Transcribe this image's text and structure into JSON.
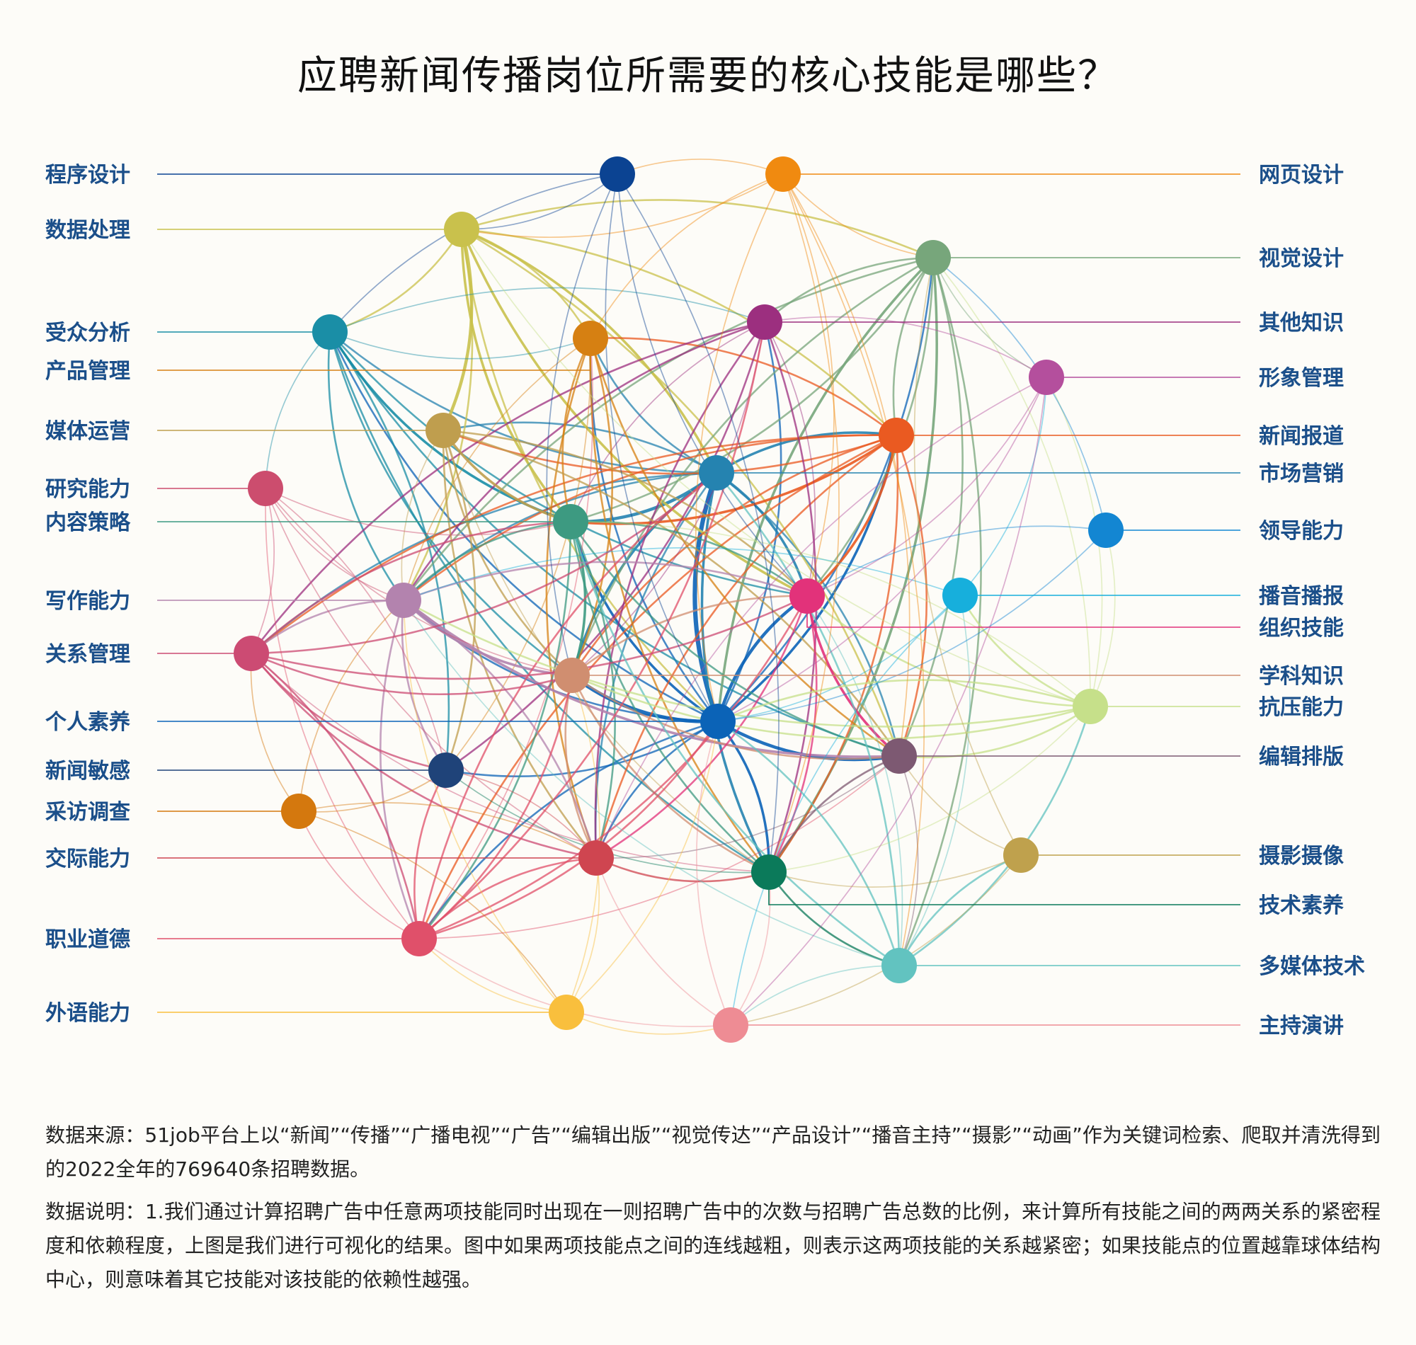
{
  "title": "应聘新闻传播岗位所需要的核心技能是哪些？",
  "nodes": [
    {
      "label": "程序设计",
      "color": "#0b4392"
    },
    {
      "label": "网页设计",
      "color": "#f08a10"
    },
    {
      "label": "数据处理",
      "color": "#c9c14c"
    },
    {
      "label": "视觉设计",
      "color": "#77a67b"
    },
    {
      "label": "受众分析",
      "color": "#1a8ea6"
    },
    {
      "label": "其他知识",
      "color": "#9c2f7f"
    },
    {
      "label": "产品管理",
      "color": "#d68012"
    },
    {
      "label": "形象管理",
      "color": "#b44f9d"
    },
    {
      "label": "媒体运营",
      "color": "#bf9e4e"
    },
    {
      "label": "新闻报道",
      "color": "#ea5a21"
    },
    {
      "label": "市场营销",
      "color": "#2583b0"
    },
    {
      "label": "研究能力",
      "color": "#cc4d6e"
    },
    {
      "label": "内容策略",
      "color": "#3d9a81"
    },
    {
      "label": "领导能力",
      "color": "#1386d2"
    },
    {
      "label": "写作能力",
      "color": "#b383ae"
    },
    {
      "label": "播音播报",
      "color": "#17afdc"
    },
    {
      "label": "组织技能",
      "color": "#e2327a"
    },
    {
      "label": "关系管理",
      "color": "#cc4b73"
    },
    {
      "label": "学科知识",
      "color": "#d08e70"
    },
    {
      "label": "抗压能力",
      "color": "#c6e08a"
    },
    {
      "label": "个人素养",
      "color": "#0b63b7"
    },
    {
      "label": "编辑排版",
      "color": "#7d5972"
    },
    {
      "label": "新闻敏感",
      "color": "#1f4379"
    },
    {
      "label": "采访调查",
      "color": "#d4780e"
    },
    {
      "label": "摄影摄像",
      "color": "#bfa14d"
    },
    {
      "label": "交际能力",
      "color": "#cf4550"
    },
    {
      "label": "技术素养",
      "color": "#0b7a5a"
    },
    {
      "label": "职业道德",
      "color": "#e0506a"
    },
    {
      "label": "多媒体技术",
      "color": "#62c3c0"
    },
    {
      "label": "外语能力",
      "color": "#f9bf3d"
    },
    {
      "label": "主持演讲",
      "color": "#ee8c94"
    }
  ],
  "edges": [
    [
      "个人素养",
      "市场营销",
      6
    ],
    [
      "个人素养",
      "编辑排版",
      4
    ],
    [
      "个人素养",
      "学科知识",
      5
    ],
    [
      "个人素养",
      "组织技能",
      4
    ],
    [
      "个人素养",
      "内容策略",
      3
    ],
    [
      "个人素养",
      "新闻报道",
      3
    ],
    [
      "个人素养",
      "技术素养",
      3
    ],
    [
      "个人素养",
      "写作能力",
      2
    ],
    [
      "个人素养",
      "产品管理",
      2
    ],
    [
      "个人素养",
      "交际能力",
      2
    ],
    [
      "个人素养",
      "其他知识",
      2
    ],
    [
      "个人素养",
      "视觉设计",
      2
    ],
    [
      "个人素养",
      "职业道德",
      2
    ],
    [
      "个人素养",
      "受众分析",
      2
    ],
    [
      "个人素养",
      "新闻敏感",
      2
    ],
    [
      "市场营销",
      "内容策略",
      4
    ],
    [
      "市场营销",
      "组织技能",
      3
    ],
    [
      "市场营销",
      "新闻报道",
      3
    ],
    [
      "市场营销",
      "技术素养",
      3
    ],
    [
      "市场营销",
      "学科知识",
      3
    ],
    [
      "市场营销",
      "编辑排版",
      2
    ],
    [
      "市场营销",
      "受众分析",
      2
    ],
    [
      "市场营销",
      "媒体运营",
      2
    ],
    [
      "市场营销",
      "写作能力",
      2
    ],
    [
      "市场营销",
      "产品管理",
      2
    ],
    [
      "市场营销",
      "交际能力",
      2
    ],
    [
      "市场营销",
      "关系管理",
      2
    ],
    [
      "数据处理",
      "媒体运营",
      4
    ],
    [
      "数据处理",
      "内容策略",
      3
    ],
    [
      "数据处理",
      "市场营销",
      3
    ],
    [
      "数据处理",
      "组织技能",
      3
    ],
    [
      "数据处理",
      "新闻报道",
      2
    ],
    [
      "数据处理",
      "产品管理",
      2
    ],
    [
      "数据处理",
      "受众分析",
      2
    ],
    [
      "数据处理",
      "视觉设计",
      2
    ],
    [
      "数据处理",
      "编辑排版",
      2
    ],
    [
      "数据处理",
      "写作能力",
      2
    ],
    [
      "数据处理",
      "个人素养",
      2
    ],
    [
      "受众分析",
      "内容策略",
      3
    ],
    [
      "受众分析",
      "组织技能",
      2
    ],
    [
      "受众分析",
      "编辑排版",
      2
    ],
    [
      "受众分析",
      "写作能力",
      2
    ],
    [
      "受众分析",
      "新闻敏感",
      2
    ],
    [
      "受众分析",
      "研究能力",
      1
    ],
    [
      "受众分析",
      "技术素养",
      2
    ],
    [
      "受众分析",
      "产品管理",
      1
    ],
    [
      "受众分析",
      "其他知识",
      1
    ],
    [
      "受众分析",
      "学科知识",
      2
    ],
    [
      "视觉设计",
      "个人素养",
      3
    ],
    [
      "视觉设计",
      "技术素养",
      3
    ],
    [
      "视觉设计",
      "其他知识",
      2
    ],
    [
      "视觉设计",
      "新闻报道",
      2
    ],
    [
      "视觉设计",
      "写作能力",
      2
    ],
    [
      "视觉设计",
      "编辑排版",
      2
    ],
    [
      "视觉设计",
      "内容策略",
      2
    ],
    [
      "视觉设计",
      "多媒体技术",
      2
    ],
    [
      "视觉设计",
      "学科知识",
      2
    ],
    [
      "视觉设计",
      "形象管理",
      1
    ],
    [
      "视觉设计",
      "组织技能",
      2
    ],
    [
      "新闻报道",
      "组织技能",
      3
    ],
    [
      "新闻报道",
      "内容策略",
      3
    ],
    [
      "新闻报道",
      "学科知识",
      2
    ],
    [
      "新闻报道",
      "技术素养",
      2
    ],
    [
      "新闻报道",
      "交际能力",
      2
    ],
    [
      "新闻报道",
      "写作能力",
      2
    ],
    [
      "新闻报道",
      "产品管理",
      2
    ],
    [
      "新闻报道",
      "媒体运营",
      2
    ],
    [
      "新闻报道",
      "编辑排版",
      2
    ],
    [
      "新闻报道",
      "关系管理",
      2
    ],
    [
      "新闻报道",
      "职业道德",
      2
    ],
    [
      "其他知识",
      "交际能力",
      2
    ],
    [
      "其他知识",
      "技术素养",
      2
    ],
    [
      "其他知识",
      "新闻敏感",
      2
    ],
    [
      "其他知识",
      "写作能力",
      2
    ],
    [
      "其他知识",
      "关系管理",
      2
    ],
    [
      "其他知识",
      "学科知识",
      1
    ],
    [
      "其他知识",
      "内容策略",
      1
    ],
    [
      "其他知识",
      "组织技能",
      1
    ],
    [
      "产品管理",
      "编辑排版",
      2
    ],
    [
      "产品管理",
      "内容策略",
      2
    ],
    [
      "产品管理",
      "交际能力",
      2
    ],
    [
      "产品管理",
      "学科知识",
      2
    ],
    [
      "产品管理",
      "技术素养",
      2
    ],
    [
      "产品管理",
      "写作能力",
      1
    ],
    [
      "产品管理",
      "新闻敏感",
      1
    ],
    [
      "媒体运营",
      "内容策略",
      3
    ],
    [
      "媒体运营",
      "学科知识",
      2
    ],
    [
      "媒体运营",
      "编辑排版",
      2
    ],
    [
      "媒体运营",
      "组织技能",
      2
    ],
    [
      "媒体运营",
      "交际能力",
      2
    ],
    [
      "媒体运营",
      "新闻敏感",
      2
    ],
    [
      "媒体运营",
      "技术素养",
      1
    ],
    [
      "媒体运营",
      "写作能力",
      1
    ],
    [
      "内容策略",
      "学科知识",
      3
    ],
    [
      "内容策略",
      "组织技能",
      2
    ],
    [
      "内容策略",
      "技术素养",
      2
    ],
    [
      "内容策略",
      "交际能力",
      2
    ],
    [
      "内容策略",
      "写作能力",
      2
    ],
    [
      "内容策略",
      "编辑排版",
      2
    ],
    [
      "内容策略",
      "职业道德",
      2
    ],
    [
      "写作能力",
      "学科知识",
      3
    ],
    [
      "写作能力",
      "编辑排版",
      3
    ],
    [
      "写作能力",
      "组织技能",
      2
    ],
    [
      "写作能力",
      "新闻敏感",
      2
    ],
    [
      "写作能力",
      "关系管理",
      2
    ],
    [
      "写作能力",
      "交际能力",
      2
    ],
    [
      "写作能力",
      "职业道德",
      2
    ],
    [
      "学科知识",
      "编辑排版",
      2
    ],
    [
      "学科知识",
      "组织技能",
      2
    ],
    [
      "学科知识",
      "技术素养",
      2
    ],
    [
      "学科知识",
      "交际能力",
      2
    ],
    [
      "组织技能",
      "编辑排版",
      3
    ],
    [
      "组织技能",
      "技术素养",
      2
    ],
    [
      "组织技能",
      "交际能力",
      2
    ],
    [
      "编辑排版",
      "技术素养",
      2
    ],
    [
      "编辑排版",
      "多媒体技术",
      1
    ],
    [
      "编辑排版",
      "交际能力",
      1
    ],
    [
      "关系管理",
      "职业道德",
      2
    ],
    [
      "关系管理",
      "新闻敏感",
      2
    ],
    [
      "关系管理",
      "交际能力",
      2
    ],
    [
      "关系管理",
      "研究能力",
      1
    ],
    [
      "关系管理",
      "学科知识",
      2
    ],
    [
      "关系管理",
      "内容策略",
      2
    ],
    [
      "关系管理",
      "市场营销",
      2
    ],
    [
      "关系管理",
      "组织技能",
      2
    ],
    [
      "关系管理",
      "技术素养",
      1
    ],
    [
      "职业道德",
      "交际能力",
      2
    ],
    [
      "职业道德",
      "新闻敏感",
      2
    ],
    [
      "职业道德",
      "个人素养",
      2
    ],
    [
      "职业道德",
      "其他知识",
      2
    ],
    [
      "职业道德",
      "市场营销",
      2
    ],
    [
      "职业道德",
      "组织技能",
      2
    ],
    [
      "职业道德",
      "学科知识",
      2
    ],
    [
      "职业道德",
      "研究能力",
      1
    ],
    [
      "职业道德",
      "采访调查",
      1
    ],
    [
      "职业道德",
      "产品管理",
      1
    ],
    [
      "职业道德",
      "编辑排版",
      1
    ],
    [
      "交际能力",
      "技术素养",
      2
    ],
    [
      "交际能力",
      "新闻敏感",
      1
    ],
    [
      "技术素养",
      "多媒体技术",
      2
    ],
    [
      "技术素养",
      "新闻敏感",
      1
    ],
    [
      "多媒体技术",
      "摄影摄像",
      2
    ],
    [
      "多媒体技术",
      "抗压能力",
      2
    ],
    [
      "多媒体技术",
      "播音播报",
      1
    ],
    [
      "多媒体技术",
      "主持演讲",
      1
    ],
    [
      "多媒体技术",
      "市场营销",
      2
    ],
    [
      "多媒体技术",
      "内容策略",
      2
    ],
    [
      "多媒体技术",
      "个人素养",
      2
    ],
    [
      "多媒体技术",
      "组织技能",
      1
    ],
    [
      "多媒体技术",
      "写作能力",
      1
    ],
    [
      "抗压能力",
      "播音播报",
      2
    ],
    [
      "抗压能力",
      "领导能力",
      1
    ],
    [
      "抗压能力",
      "形象管理",
      1
    ],
    [
      "抗压能力",
      "个人素养",
      2
    ],
    [
      "抗压能力",
      "学科知识",
      2
    ],
    [
      "抗压能力",
      "写作能力",
      2
    ],
    [
      "抗压能力",
      "组织技能",
      2
    ],
    [
      "抗压能力",
      "编辑排版",
      2
    ],
    [
      "抗压能力",
      "技术素养",
      1
    ],
    [
      "抗压能力",
      "数据处理",
      1
    ],
    [
      "抗压能力",
      "内容策略",
      1
    ],
    [
      "抗压能力",
      "视觉设计",
      1
    ],
    [
      "播音播报",
      "主持演讲",
      1
    ],
    [
      "播音播报",
      "形象管理",
      1
    ],
    [
      "播音播报",
      "个人素养",
      1
    ],
    [
      "播音播报",
      "写作能力",
      1
    ],
    [
      "形象管理",
      "个人素养",
      1
    ],
    [
      "形象管理",
      "组织技能",
      1
    ],
    [
      "形象管理",
      "交际能力",
      1
    ],
    [
      "形象管理",
      "主持演讲",
      1
    ],
    [
      "形象管理",
      "其他知识",
      1
    ],
    [
      "领导能力",
      "组织技能",
      1
    ],
    [
      "领导能力",
      "视觉设计",
      1
    ],
    [
      "领导能力",
      "个人素养",
      1
    ],
    [
      "网页设计",
      "视觉设计",
      1
    ],
    [
      "网页设计",
      "程序设计",
      1
    ],
    [
      "网页设计",
      "组织技能",
      1
    ],
    [
      "网页设计",
      "个人素养",
      1
    ],
    [
      "网页设计",
      "技术素养",
      1
    ],
    [
      "网页设计",
      "多媒体技术",
      1
    ],
    [
      "网页设计",
      "数据处理",
      1
    ],
    [
      "网页设计",
      "编辑排版",
      1
    ],
    [
      "网页设计",
      "产品管理",
      1
    ],
    [
      "程序设计",
      "数据处理",
      1
    ],
    [
      "程序设计",
      "技术素养",
      1
    ],
    [
      "程序设计",
      "个人素养",
      1
    ],
    [
      "程序设计",
      "组织技能",
      1
    ],
    [
      "程序设计",
      "学科知识",
      1
    ],
    [
      "程序设计",
      "受众分析",
      1
    ],
    [
      "研究能力",
      "内容策略",
      1
    ],
    [
      "研究能力",
      "学科知识",
      1
    ],
    [
      "研究能力",
      "写作能力",
      1
    ],
    [
      "研究能力",
      "新闻敏感",
      1
    ],
    [
      "研究能力",
      "交际能力",
      1
    ],
    [
      "采访调查",
      "新闻敏感",
      1
    ],
    [
      "采访调查",
      "交际能力",
      1
    ],
    [
      "采访调查",
      "写作能力",
      1
    ],
    [
      "采访调查",
      "关系管理",
      1
    ],
    [
      "采访调查",
      "外语能力",
      1
    ],
    [
      "摄影摄像",
      "编辑排版",
      1
    ],
    [
      "摄影摄像",
      "技术素养",
      1
    ],
    [
      "摄影摄像",
      "视觉设计",
      1
    ],
    [
      "摄影摄像",
      "主持演讲",
      1
    ],
    [
      "外语能力",
      "职业道德",
      1
    ],
    [
      "外语能力",
      "交际能力",
      1
    ],
    [
      "外语能力",
      "个人素养",
      1
    ],
    [
      "外语能力",
      "写作能力",
      1
    ],
    [
      "外语能力",
      "学科知识",
      1
    ],
    [
      "外语能力",
      "主持演讲",
      1
    ],
    [
      "主持演讲",
      "交际能力",
      1
    ],
    [
      "主持演讲",
      "个人素养",
      1
    ],
    [
      "主持演讲",
      "职业道德",
      1
    ],
    [
      "主持演讲",
      "技术素养",
      1
    ]
  ],
  "notes": {
    "source": "数据来源：51job平台上以“新闻”“传播”“广播电视”“广告”“编辑出版”“视觉传达”“产品设计”“播音主持”“摄影”“动画”作为关键词检索、爬取并清洗得到的2022全年的769640条招聘数据。",
    "description": "数据说明：1.我们通过计算招聘广告中任意两项技能同时出现在一则招聘广告中的次数与招聘广告总数的比例，来计算所有技能之间的两两关系的紧密程度和依赖程度，上图是我们进行可视化的结果。图中如果两项技能点之间的连线越粗，则表示这两项技能的关系越紧密；如果技能点的位置越靠球体结构中心，则意味着其它技能对该技能的依赖性越强。"
  }
}
